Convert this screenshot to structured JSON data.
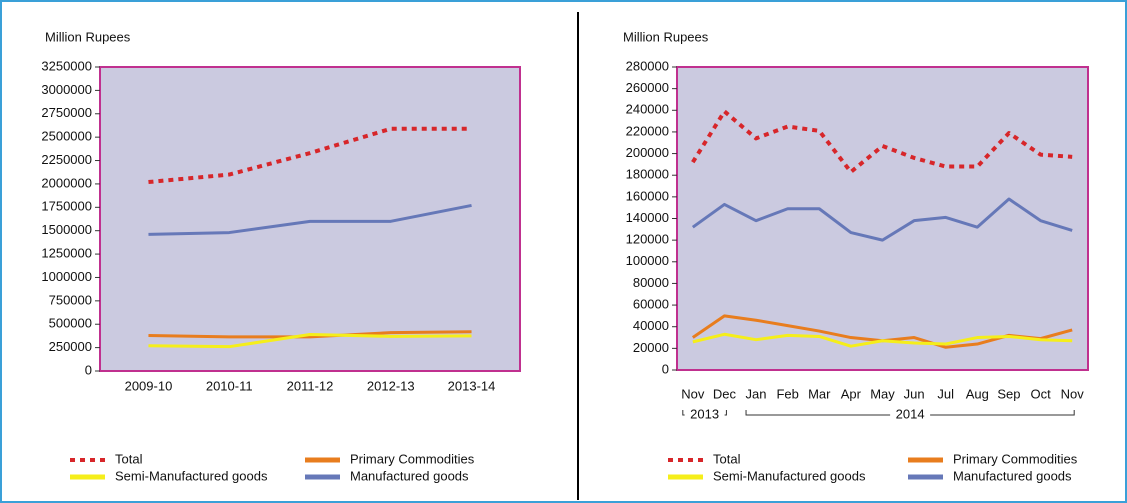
{
  "chart_data": [
    {
      "type": "line",
      "ylabel": "Million Rupees",
      "categories": [
        "2009-10",
        "2010-11",
        "2011-12",
        "2012-13",
        "2013-14"
      ],
      "ylim": [
        0,
        3250000
      ],
      "yticks": [
        0,
        250000,
        500000,
        750000,
        1000000,
        1250000,
        1500000,
        1750000,
        2000000,
        2250000,
        2500000,
        2750000,
        3000000,
        3250000
      ],
      "series": [
        {
          "name": "Total",
          "color": "#d7262a",
          "style": "dotted",
          "values": [
            2020000,
            2100000,
            2330000,
            2590000,
            2590000
          ]
        },
        {
          "name": "Primary Commodities",
          "color": "#e87d1e",
          "style": "solid",
          "values": [
            380000,
            365000,
            365000,
            410000,
            420000
          ]
        },
        {
          "name": "Semi-Manufactured goods",
          "color": "#f5ee1a",
          "style": "solid",
          "values": [
            270000,
            260000,
            390000,
            370000,
            375000
          ]
        },
        {
          "name": "Manufactured goods",
          "color": "#6678b8",
          "style": "solid",
          "values": [
            1460000,
            1480000,
            1600000,
            1600000,
            1770000
          ]
        }
      ]
    },
    {
      "type": "line",
      "ylabel": "Million Rupees",
      "categories": [
        "Nov",
        "Dec",
        "Jan",
        "Feb",
        "Mar",
        "Apr",
        "May",
        "Jun",
        "Jul",
        "Aug",
        "Sep",
        "Oct",
        "Nov"
      ],
      "ylim": [
        0,
        280000
      ],
      "yticks": [
        0,
        20000,
        40000,
        60000,
        80000,
        100000,
        120000,
        140000,
        160000,
        180000,
        200000,
        220000,
        240000,
        260000,
        280000
      ],
      "annotations": [
        {
          "text": "2013",
          "categories": [
            0,
            1
          ]
        },
        {
          "text": "2014",
          "categories": [
            2,
            12
          ]
        }
      ],
      "series": [
        {
          "name": "Total",
          "color": "#d7262a",
          "style": "dotted",
          "values": [
            192000,
            239000,
            214000,
            225000,
            221000,
            183000,
            207000,
            196000,
            188000,
            188000,
            219000,
            199000,
            197000
          ]
        },
        {
          "name": "Primary Commodities",
          "color": "#e87d1e",
          "style": "solid",
          "values": [
            30000,
            50000,
            46000,
            41000,
            36000,
            30000,
            27000,
            30000,
            21000,
            24000,
            32000,
            29000,
            37000
          ]
        },
        {
          "name": "Semi-Manufactured goods",
          "color": "#f5ee1a",
          "style": "solid",
          "values": [
            26000,
            33000,
            28000,
            32000,
            31000,
            22000,
            27000,
            25000,
            24000,
            30000,
            31000,
            28000,
            27000
          ]
        },
        {
          "name": "Manufactured goods",
          "color": "#6678b8",
          "style": "solid",
          "values": [
            132000,
            153000,
            138000,
            149000,
            149000,
            127000,
            120000,
            138000,
            141000,
            132000,
            158000,
            138000,
            129000
          ]
        }
      ]
    }
  ]
}
